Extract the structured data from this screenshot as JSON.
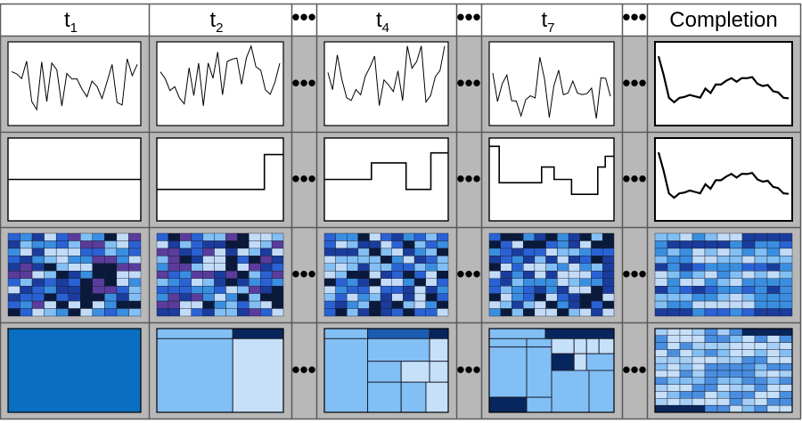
{
  "columns": [
    {
      "id": "t1",
      "base": "t",
      "sub": "1"
    },
    {
      "id": "t2",
      "base": "t",
      "sub": "2"
    },
    {
      "id": "gap1",
      "ellipsis": "•••"
    },
    {
      "id": "t4",
      "base": "t",
      "sub": "4"
    },
    {
      "id": "gap2",
      "ellipsis": "•••"
    },
    {
      "id": "t7",
      "base": "t",
      "sub": "7"
    },
    {
      "id": "gap3",
      "ellipsis": "•••"
    },
    {
      "id": "completion",
      "label": "Completion"
    }
  ],
  "colors": {
    "frame": "#b8b8b8",
    "grid_line": "#5a5a5a",
    "header_bg": "#ffffff",
    "panel_bg": "#ffffff",
    "line": "#000000",
    "heat": [
      "#0a1a3c",
      "#1a3c9c",
      "#2a62d4",
      "#3a8ee0",
      "#82bff4",
      "#c2dcf8",
      "#5a3c9c"
    ],
    "treemap": [
      "#0a6fc0",
      "#82bff4",
      "#c6e0fa",
      "#08265e",
      "#1a5cb0",
      "#4a90e0"
    ]
  }
}
